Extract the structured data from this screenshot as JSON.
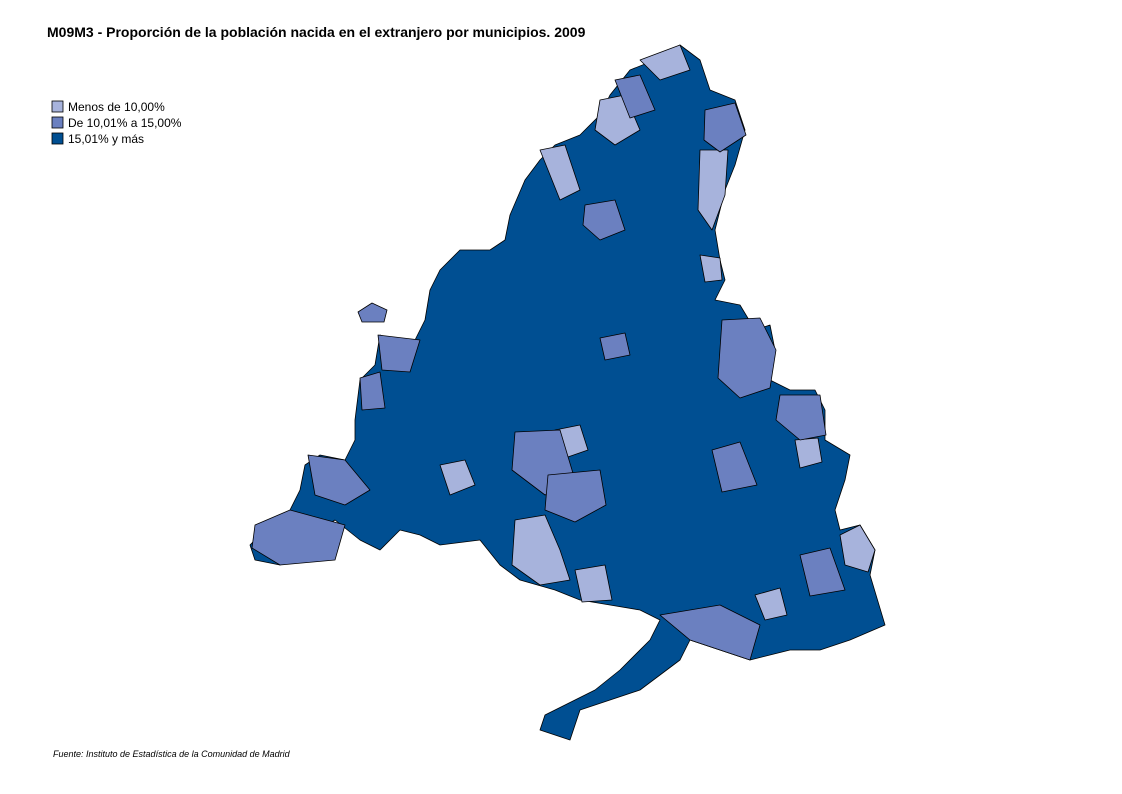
{
  "title": "M09M3 - Proporción de la población nacida en el extranjero por municipios. 2009",
  "legend": [
    {
      "label": "Menos de 10,00%",
      "color": "#a7b3dc"
    },
    {
      "label": "De 10,01% a 15,00%",
      "color": "#6b80c0"
    },
    {
      "label": "15,01% y más",
      "color": "#004f92"
    }
  ],
  "source": "Fuente: Instituto de Estadística de la Comunidad de Madrid"
}
